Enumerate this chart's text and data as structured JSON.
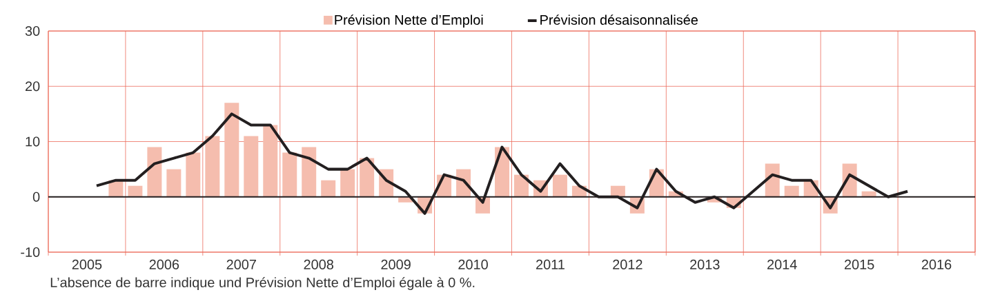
{
  "chart_data": {
    "type": "bar",
    "x": [
      2005.625,
      2005.875,
      2006.125,
      2006.375,
      2006.625,
      2006.875,
      2007.125,
      2007.375,
      2007.625,
      2007.875,
      2008.125,
      2008.375,
      2008.625,
      2008.875,
      2009.125,
      2009.375,
      2009.625,
      2009.875,
      2010.125,
      2010.375,
      2010.625,
      2010.875,
      2011.125,
      2011.375,
      2011.625,
      2011.875,
      2012.125,
      2012.375,
      2012.625,
      2012.875,
      2013.125,
      2013.375,
      2013.625,
      2013.875,
      2014.125,
      2014.375,
      2014.625,
      2014.875,
      2015.125,
      2015.375,
      2015.625,
      2015.875,
      2016.125
    ],
    "series": [
      {
        "name": "Prévision Nette d’Emploi",
        "color": "#f5bdae",
        "values": [
          null,
          3,
          2,
          9,
          5,
          8,
          11,
          17,
          11,
          13,
          8,
          9,
          3,
          5,
          7,
          5,
          -1,
          -3,
          4,
          5,
          -3,
          9,
          4,
          3,
          4,
          2,
          0,
          2,
          -3,
          5,
          1,
          0,
          -1,
          -2,
          0,
          6,
          2,
          3,
          -3,
          6,
          1,
          0,
          0
        ]
      },
      {
        "name": "Prévision désaisonnalisée",
        "type": "line",
        "color": "#231f20",
        "values": [
          2,
          3,
          3,
          6,
          7,
          8,
          11,
          15,
          13,
          13,
          8,
          7,
          5,
          5,
          7,
          3,
          1,
          -3,
          4,
          3,
          -1,
          9,
          4,
          1,
          6,
          2,
          0,
          0,
          -2,
          5,
          1,
          -1,
          0,
          -2,
          1,
          4,
          3,
          3,
          -2,
          4,
          2,
          0,
          1
        ]
      }
    ],
    "xlim": [
      2005,
      2017
    ],
    "xticks": [
      {
        "value": 2005,
        "label": null
      },
      {
        "value": 2006,
        "label": null
      },
      {
        "value": 2007,
        "label": null
      },
      {
        "value": 2008,
        "label": null
      },
      {
        "value": 2009,
        "label": null
      },
      {
        "value": 2010,
        "label": null
      },
      {
        "value": 2011,
        "label": null
      },
      {
        "value": 2012,
        "label": null
      },
      {
        "value": 2013,
        "label": null
      },
      {
        "value": 2014,
        "label": null
      },
      {
        "value": 2015,
        "label": null
      },
      {
        "value": 2016,
        "label": null
      },
      {
        "value": 2017,
        "label": null
      },
      {
        "value": 2005.5,
        "label": "2005"
      },
      {
        "value": 2006.5,
        "label": "2006"
      },
      {
        "value": 2007.5,
        "label": "2007"
      },
      {
        "value": 2008.5,
        "label": "2008"
      },
      {
        "value": 2009.5,
        "label": "2009"
      },
      {
        "value": 2010.5,
        "label": "2010"
      },
      {
        "value": 2011.5,
        "label": "2011"
      },
      {
        "value": 2012.5,
        "label": "2012"
      },
      {
        "value": 2013.5,
        "label": "2013"
      },
      {
        "value": 2014.5,
        "label": "2014"
      },
      {
        "value": 2015.5,
        "label": "2015"
      },
      {
        "value": 2016.5,
        "label": "2016"
      }
    ],
    "ylim": [
      -10,
      30
    ],
    "yticks": [
      -10,
      0,
      10,
      20,
      30
    ],
    "grid": true,
    "legend": "top",
    "ref_lines": [
      {
        "axis": "y",
        "value": 0,
        "color": "#231f20"
      }
    ],
    "annotations": [
      "L’absence de barre indique und Prévision Nette d’Emploi égale à 0 %."
    ]
  }
}
